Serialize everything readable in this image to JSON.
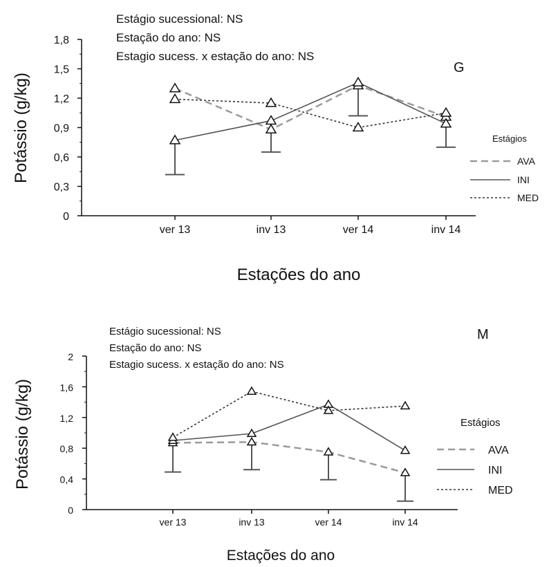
{
  "chart_data": [
    {
      "type": "line",
      "panel_label": "G",
      "annotations": [
        "Estágio sucessional: NS",
        "Estação do ano: NS",
        "Estagio sucess. x estação do ano: NS"
      ],
      "xlabel": "Estações do ano",
      "ylabel": "Potássio (g/kg)",
      "categories": [
        "ver 13",
        "inv 13",
        "ver 14",
        "inv 14"
      ],
      "y_ticks": [
        "0",
        "0,3",
        "0,6",
        "0,9",
        "1,2",
        "1,5",
        "1,8"
      ],
      "ylim": [
        0,
        1.8
      ],
      "legend": {
        "title": "Estágios",
        "position": "right"
      },
      "series": [
        {
          "name": "AVA",
          "values": [
            1.3,
            0.88,
            1.33,
            1.01
          ],
          "color": "#9a9a9a",
          "dash": "10,6",
          "error_low": [
            null,
            0.65,
            1.02,
            null
          ]
        },
        {
          "name": "INI",
          "values": [
            0.77,
            0.97,
            1.36,
            0.94
          ],
          "color": "#555555",
          "dash": "",
          "error_low": [
            0.42,
            null,
            null,
            0.7
          ]
        },
        {
          "name": "MED",
          "values": [
            1.19,
            1.15,
            0.9,
            1.05
          ],
          "color": "#333333",
          "dash": "3,3",
          "error_low": [
            null,
            null,
            null,
            null
          ]
        }
      ]
    },
    {
      "type": "line",
      "panel_label": "M",
      "annotations": [
        "Estágio sucessional: NS",
        "Estação do ano: NS",
        "Estagio sucess. x estação do ano: NS"
      ],
      "xlabel": "Estações do ano",
      "ylabel": "Potássio (g/kg)",
      "categories": [
        "ver 13",
        "inv 13",
        "ver 14",
        "inv 14"
      ],
      "y_ticks": [
        "0",
        "0,4",
        "0,8",
        "1,2",
        "1,6",
        "2"
      ],
      "ylim": [
        0,
        2
      ],
      "legend": {
        "title": "Estágios",
        "position": "right"
      },
      "series": [
        {
          "name": "AVA",
          "values": [
            0.87,
            0.88,
            0.75,
            0.48
          ],
          "color": "#9a9a9a",
          "dash": "10,6",
          "error_low": [
            0.49,
            0.52,
            0.39,
            0.11
          ]
        },
        {
          "name": "INI",
          "values": [
            0.9,
            0.99,
            1.37,
            0.77
          ],
          "color": "#555555",
          "dash": "",
          "error_low": [
            null,
            null,
            null,
            null
          ]
        },
        {
          "name": "MED",
          "values": [
            0.94,
            1.54,
            1.29,
            1.35
          ],
          "color": "#333333",
          "dash": "3,3",
          "error_low": [
            null,
            null,
            null,
            null
          ]
        }
      ]
    }
  ]
}
